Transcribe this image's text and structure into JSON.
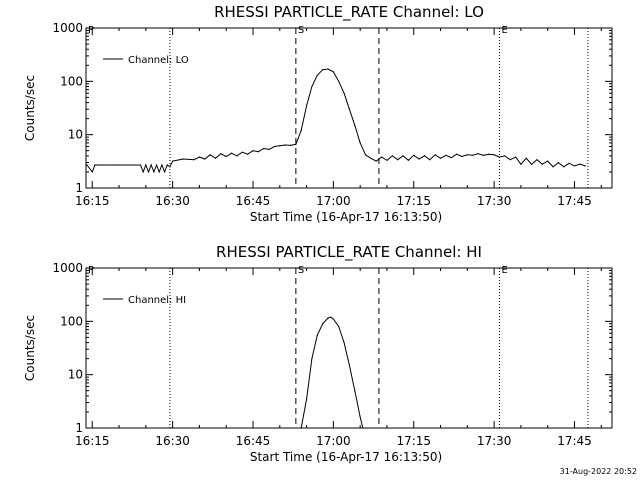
{
  "footer": {
    "timestamp": "31-Aug-2022 20:52"
  },
  "chart_data": [
    {
      "type": "line",
      "title": "RHESSI PARTICLE_RATE Channel: LO",
      "xlabel": "Start Time (16-Apr-17 16:13:50)",
      "ylabel": "Counts/sec",
      "yscale": "log",
      "ylim": [
        1,
        1000
      ],
      "yticks": [
        1,
        10,
        100,
        1000
      ],
      "ytick_labels": [
        "1",
        "10",
        "100",
        "1000"
      ],
      "xlim": [
        "16:13:50",
        "17:52:00"
      ],
      "xticks": [
        "16:15",
        "16:30",
        "16:45",
        "17:00",
        "17:15",
        "17:30",
        "17:45"
      ],
      "legend": {
        "label": "Channel: LO",
        "placement": "top-left"
      },
      "markers": [
        {
          "time": "16:13:50",
          "style": "dotted",
          "label": "P"
        },
        {
          "time": "16:29:30",
          "style": "dotted",
          "label": ""
        },
        {
          "time": "16:53:00",
          "style": "dashed",
          "label": "S"
        },
        {
          "time": "17:08:30",
          "style": "dashed",
          "label": ""
        },
        {
          "time": "17:31:00",
          "style": "dotted",
          "label": "E"
        },
        {
          "time": "17:47:30",
          "style": "dotted",
          "label": ""
        }
      ],
      "series": [
        {
          "name": "Channel: LO",
          "x": [
            "16:14:00",
            "16:15:00",
            "16:15:30",
            "16:16:00",
            "16:20:00",
            "16:24:00",
            "16:24:30",
            "16:25:00",
            "16:25:30",
            "16:26:00",
            "16:26:30",
            "16:27:00",
            "16:27:30",
            "16:28:00",
            "16:28:30",
            "16:29:00",
            "16:29:30",
            "16:30:00",
            "16:32:00",
            "16:34:00",
            "16:35:00",
            "16:36:00",
            "16:37:00",
            "16:38:00",
            "16:39:00",
            "16:40:00",
            "16:41:00",
            "16:42:00",
            "16:43:00",
            "16:44:00",
            "16:45:00",
            "16:46:00",
            "16:47:00",
            "16:48:00",
            "16:49:00",
            "16:50:00",
            "16:51:00",
            "16:52:00",
            "16:53:00",
            "16:54:00",
            "16:55:00",
            "16:56:00",
            "16:57:00",
            "16:58:00",
            "16:59:00",
            "17:00:00",
            "17:01:00",
            "17:02:00",
            "17:03:00",
            "17:04:00",
            "17:05:00",
            "17:06:00",
            "17:07:00",
            "17:08:00",
            "17:09:00",
            "17:10:00",
            "17:11:00",
            "17:12:00",
            "17:13:00",
            "17:14:00",
            "17:15:00",
            "17:16:00",
            "17:17:00",
            "17:18:00",
            "17:19:00",
            "17:20:00",
            "17:21:00",
            "17:22:00",
            "17:23:00",
            "17:24:00",
            "17:25:00",
            "17:26:00",
            "17:27:00",
            "17:28:00",
            "17:29:00",
            "17:30:00",
            "17:31:00",
            "17:32:00",
            "17:33:00",
            "17:34:00",
            "17:35:00",
            "17:36:00",
            "17:37:00",
            "17:38:00",
            "17:39:00",
            "17:40:00",
            "17:41:00",
            "17:42:00",
            "17:43:00",
            "17:44:00",
            "17:45:00",
            "17:46:00",
            "17:47:00"
          ],
          "y": [
            2.7,
            2.0,
            2.7,
            2.7,
            2.7,
            2.7,
            2.0,
            2.7,
            2.0,
            2.7,
            2.0,
            2.7,
            2.0,
            2.7,
            2.0,
            2.7,
            2.5,
            3.2,
            3.5,
            3.4,
            3.8,
            3.5,
            4.2,
            3.6,
            4.4,
            3.9,
            4.5,
            4.0,
            4.7,
            4.3,
            5.0,
            4.8,
            5.5,
            5.3,
            6.0,
            6.2,
            6.4,
            6.3,
            6.6,
            12,
            35,
            80,
            130,
            165,
            170,
            150,
            100,
            60,
            30,
            15,
            7,
            4.2,
            3.6,
            3.2,
            3.8,
            3.3,
            4.0,
            3.4,
            4.0,
            3.3,
            4.1,
            3.5,
            4.0,
            3.4,
            4.2,
            3.6,
            4.1,
            3.7,
            4.3,
            3.9,
            4.2,
            4.1,
            4.4,
            4.1,
            4.3,
            4.2,
            3.8,
            4.0,
            3.4,
            3.8,
            2.8,
            3.6,
            2.8,
            3.4,
            2.8,
            3.2,
            2.5,
            3.0,
            2.5,
            2.9,
            2.6,
            2.8,
            2.6
          ]
        }
      ]
    },
    {
      "type": "line",
      "title": "RHESSI PARTICLE_RATE Channel: HI",
      "xlabel": "Start Time (16-Apr-17 16:13:50)",
      "ylabel": "Counts/sec",
      "yscale": "log",
      "ylim": [
        1,
        1000
      ],
      "yticks": [
        1,
        10,
        100,
        1000
      ],
      "ytick_labels": [
        "1",
        "10",
        "100",
        "1000"
      ],
      "xlim": [
        "16:13:50",
        "17:52:00"
      ],
      "xticks": [
        "16:15",
        "16:30",
        "16:45",
        "17:00",
        "17:15",
        "17:30",
        "17:45"
      ],
      "legend": {
        "label": "Channel: HI",
        "placement": "top-left"
      },
      "markers": [
        {
          "time": "16:13:50",
          "style": "dotted",
          "label": "P"
        },
        {
          "time": "16:29:30",
          "style": "dotted",
          "label": ""
        },
        {
          "time": "16:53:00",
          "style": "dashed",
          "label": "S"
        },
        {
          "time": "17:08:30",
          "style": "dashed",
          "label": ""
        },
        {
          "time": "17:31:00",
          "style": "dotted",
          "label": "E"
        },
        {
          "time": "17:47:30",
          "style": "dotted",
          "label": ""
        }
      ],
      "series": [
        {
          "name": "Channel: HI",
          "x": [
            "16:54:00",
            "16:55:00",
            "16:56:00",
            "16:57:00",
            "16:58:00",
            "16:59:00",
            "16:59:30",
            "17:00:00",
            "17:01:00",
            "17:02:00",
            "17:03:00",
            "17:04:00",
            "17:05:00",
            "17:05:30"
          ],
          "y": [
            1.0,
            3.5,
            20,
            55,
            90,
            115,
            120,
            110,
            80,
            40,
            15,
            5,
            1.6,
            1.0
          ]
        }
      ]
    }
  ]
}
